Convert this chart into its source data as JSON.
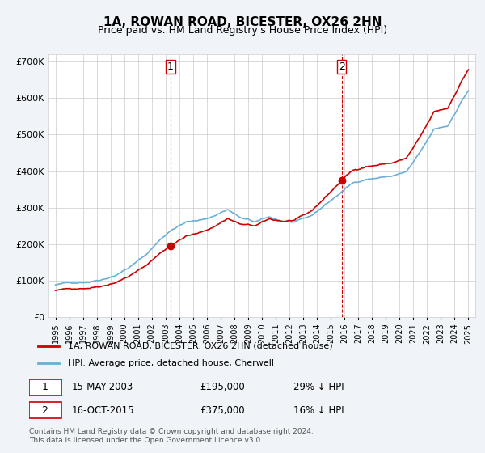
{
  "title": "1A, ROWAN ROAD, BICESTER, OX26 2HN",
  "subtitle": "Price paid vs. HM Land Registry's House Price Index (HPI)",
  "ylabel_ticks": [
    "£0",
    "£100K",
    "£200K",
    "£300K",
    "£400K",
    "£500K",
    "£600K",
    "£700K"
  ],
  "ytick_values": [
    0,
    100000,
    200000,
    300000,
    400000,
    500000,
    600000,
    700000
  ],
  "ylim": [
    0,
    720000
  ],
  "xlim_start": 1994.5,
  "xlim_end": 2025.5,
  "hpi_color": "#6baed6",
  "price_color": "#cc0000",
  "dashed_color": "#cc0000",
  "marker1_x": 2003.37,
  "marker1_y": 195000,
  "marker1_label": "1",
  "marker2_x": 2015.79,
  "marker2_y": 375000,
  "marker2_label": "2",
  "legend_line1": "1A, ROWAN ROAD, BICESTER, OX26 2HN (detached house)",
  "legend_line2": "HPI: Average price, detached house, Cherwell",
  "table_row1": "1    15-MAY-2003    £195,000    29% ↓ HPI",
  "table_row2": "2    16-OCT-2015    £375,000    16% ↓ HPI",
  "footnote": "Contains HM Land Registry data © Crown copyright and database right 2024.\nThis data is licensed under the Open Government Licence v3.0.",
  "background_color": "#f0f4f8",
  "plot_bg_color": "#ffffff",
  "grid_color": "#cccccc"
}
